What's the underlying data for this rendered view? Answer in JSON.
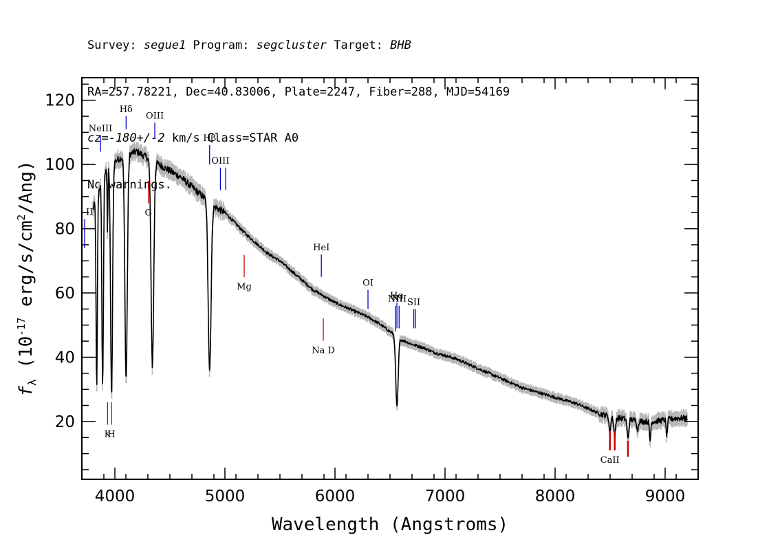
{
  "header": {
    "line1": {
      "survey_label": "Survey: ",
      "survey": "segue1",
      "program_label": " Program: ",
      "program": "segcluster",
      "target_label": " Target: ",
      "target": "BHB"
    },
    "line2": "RA=257.78221, Dec=40.83006, Plate=2247, Fiber=288, MJD=54169",
    "line3": {
      "cz": "cz=-180+/-2",
      "rest": " km/s Class=STAR A0"
    },
    "line4": "No warnings."
  },
  "chart_data": {
    "type": "line",
    "xlabel": "Wavelength (Angstroms)",
    "ylabel": "f_λ (10^-17 erg/s/cm^2/Ang)",
    "xlim": [
      3700,
      9300
    ],
    "ylim": [
      2,
      127
    ],
    "x_ticks": [
      4000,
      5000,
      6000,
      7000,
      8000,
      9000
    ],
    "y_ticks": [
      20,
      40,
      60,
      80,
      100,
      120
    ],
    "x_minor_step": 200,
    "y_minor_step": 5,
    "grid": false,
    "spectrum": {
      "color": "#000000",
      "error_color": "#b8b8b8",
      "continuum": [
        [
          3800,
          86
        ],
        [
          3900,
          97
        ],
        [
          4000,
          101
        ],
        [
          4100,
          103
        ],
        [
          4200,
          104
        ],
        [
          4300,
          102
        ],
        [
          4400,
          100
        ],
        [
          4500,
          98
        ],
        [
          4600,
          96
        ],
        [
          4700,
          93
        ],
        [
          4800,
          90
        ],
        [
          4900,
          87
        ],
        [
          5000,
          85
        ],
        [
          5100,
          81.5
        ],
        [
          5200,
          78
        ],
        [
          5300,
          75
        ],
        [
          5400,
          72
        ],
        [
          5500,
          70
        ],
        [
          5600,
          67
        ],
        [
          5700,
          64
        ],
        [
          5800,
          61
        ],
        [
          5900,
          59
        ],
        [
          6000,
          57
        ],
        [
          6100,
          55.5
        ],
        [
          6200,
          54
        ],
        [
          6300,
          52.5
        ],
        [
          6400,
          50.5
        ],
        [
          6500,
          48
        ],
        [
          6600,
          45.5
        ],
        [
          6700,
          44
        ],
        [
          6800,
          43
        ],
        [
          6900,
          41.5
        ],
        [
          7000,
          40.5
        ],
        [
          7100,
          39.5
        ],
        [
          7200,
          38
        ],
        [
          7300,
          36.5
        ],
        [
          7400,
          35
        ],
        [
          7500,
          33.5
        ],
        [
          7600,
          32
        ],
        [
          7700,
          30.5
        ],
        [
          7800,
          29.5
        ],
        [
          7900,
          28.5
        ],
        [
          8000,
          27.5
        ],
        [
          8100,
          26.5
        ],
        [
          8200,
          25.5
        ],
        [
          8300,
          24
        ],
        [
          8400,
          22.5
        ],
        [
          8500,
          21.5
        ],
        [
          8600,
          21
        ],
        [
          8700,
          20.5
        ],
        [
          8800,
          20
        ],
        [
          8900,
          20
        ],
        [
          9000,
          20.5
        ],
        [
          9100,
          21
        ],
        [
          9200,
          21
        ]
      ],
      "absorption_lines": [
        {
          "center": 3835,
          "depth": 60,
          "width": 6
        },
        {
          "center": 3889,
          "depth": 65,
          "width": 7
        },
        {
          "center": 3933,
          "depth": 20,
          "width": 3
        },
        {
          "center": 3970,
          "depth": 72,
          "width": 9
        },
        {
          "center": 4102,
          "depth": 70,
          "width": 11
        },
        {
          "center": 4341,
          "depth": 64,
          "width": 12
        },
        {
          "center": 4861,
          "depth": 52,
          "width": 13
        },
        {
          "center": 6563,
          "depth": 22,
          "width": 11
        },
        {
          "center": 8498,
          "depth": 5,
          "width": 7
        },
        {
          "center": 8542,
          "depth": 6,
          "width": 8
        },
        {
          "center": 8662,
          "depth": 6,
          "width": 8
        },
        {
          "center": 8750,
          "depth": 3,
          "width": 6
        },
        {
          "center": 8863,
          "depth": 6,
          "width": 6
        },
        {
          "center": 9015,
          "depth": 5,
          "width": 6
        }
      ]
    },
    "emission_line_markers": [
      {
        "label": "NeIII",
        "wavelength": 3869,
        "top": 109,
        "bottom": 104
      },
      {
        "label": "Hδ",
        "wavelength": 4102,
        "top": 115,
        "bottom": 111
      },
      {
        "label": "OIII",
        "wavelength": 4363,
        "top": 113,
        "bottom": 108
      },
      {
        "label": "Hβ",
        "wavelength": 4861,
        "top": 106,
        "bottom": 100
      },
      {
        "label": "OIII",
        "wavelength": 4959,
        "top": 99,
        "bottom": 92
      },
      {
        "label": "",
        "wavelength": 5007,
        "top": 99,
        "bottom": 92
      },
      {
        "label": "HeI",
        "wavelength": 5876,
        "top": 72,
        "bottom": 65
      },
      {
        "label": "OI",
        "wavelength": 6300,
        "top": 61,
        "bottom": 55
      },
      {
        "label": "NII",
        "wavelength": 6548,
        "top": 56,
        "bottom": 48
      },
      {
        "label": "Hα",
        "wavelength": 6563,
        "top": 57,
        "bottom": 49
      },
      {
        "label": "NII",
        "wavelength": 6583,
        "top": 56,
        "bottom": 49
      },
      {
        "label": "SII",
        "wavelength": 6716,
        "top": 55,
        "bottom": 49
      },
      {
        "label": "",
        "wavelength": 6731,
        "top": 55,
        "bottom": 49
      }
    ],
    "emission_line_edge": {
      "label": "II",
      "wavelength": 3727
    },
    "absorption_line_markers": [
      {
        "label": "K",
        "wavelength": 3934
      },
      {
        "label": "H",
        "wavelength": 3969
      },
      {
        "label": "G",
        "wavelength": 4304
      },
      {
        "label": "Mg",
        "wavelength": 5175
      },
      {
        "label": "Na D",
        "wavelength": 5894
      },
      {
        "label": "CaII",
        "wavelength": 8498
      },
      {
        "label": "",
        "wavelength": 8542
      },
      {
        "label": "",
        "wavelength": 8662
      }
    ],
    "marker_colors": {
      "emission": "#0000cc",
      "absorption": "#cc0000"
    }
  }
}
